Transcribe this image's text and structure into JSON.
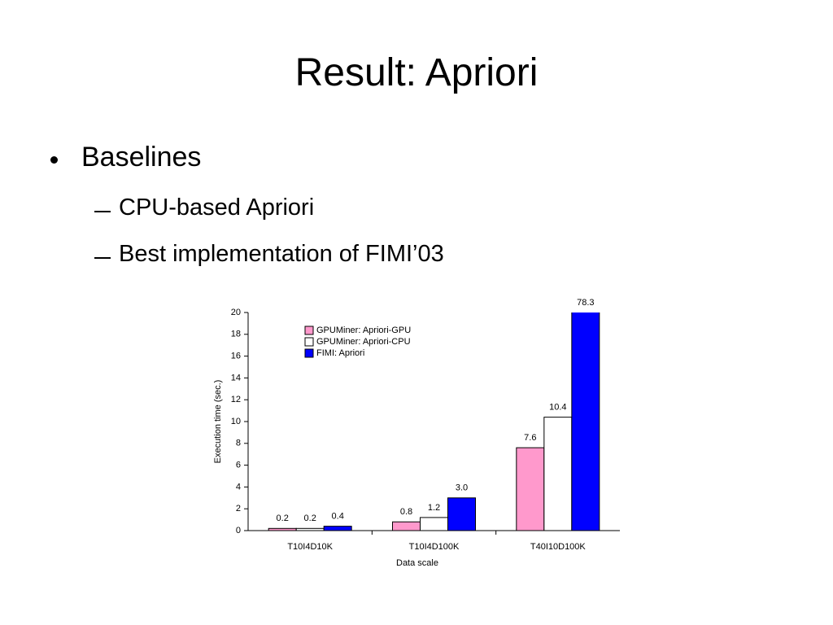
{
  "title": "Result: Apriori",
  "bullets": [
    {
      "text": "Baselines",
      "items": [
        "CPU-based Apriori",
        "Best implementation of FIMI’03"
      ]
    }
  ],
  "chart_data": {
    "type": "bar",
    "y_label": "Execution time (sec.)",
    "x_label": "Data scale",
    "categories": [
      "T10I4D10K",
      "T10I4D100K",
      "T40I10D100K"
    ],
    "series": [
      {
        "name": "GPUMiner: Apriori-GPU",
        "color": "#ff99cc",
        "values": [
          0.2,
          0.8,
          7.6
        ],
        "value_labels": [
          "0.2",
          "0.8",
          "7.6"
        ]
      },
      {
        "name": "GPUMiner: Apriori-CPU",
        "color": "#ffffff",
        "values": [
          0.2,
          1.2,
          10.4
        ],
        "value_labels": [
          "0.2",
          "1.2",
          "10.4"
        ]
      },
      {
        "name": "FIMI: Apriori",
        "color": "#0000ff",
        "values": [
          0.4,
          3.0,
          78.3
        ],
        "value_labels": [
          "0.4",
          "3.0",
          "78.3"
        ]
      }
    ],
    "ylim": [
      0,
      20
    ],
    "yticks": [
      0,
      2,
      4,
      6,
      8,
      10,
      12,
      14,
      16,
      18,
      20
    ],
    "grid": false
  }
}
